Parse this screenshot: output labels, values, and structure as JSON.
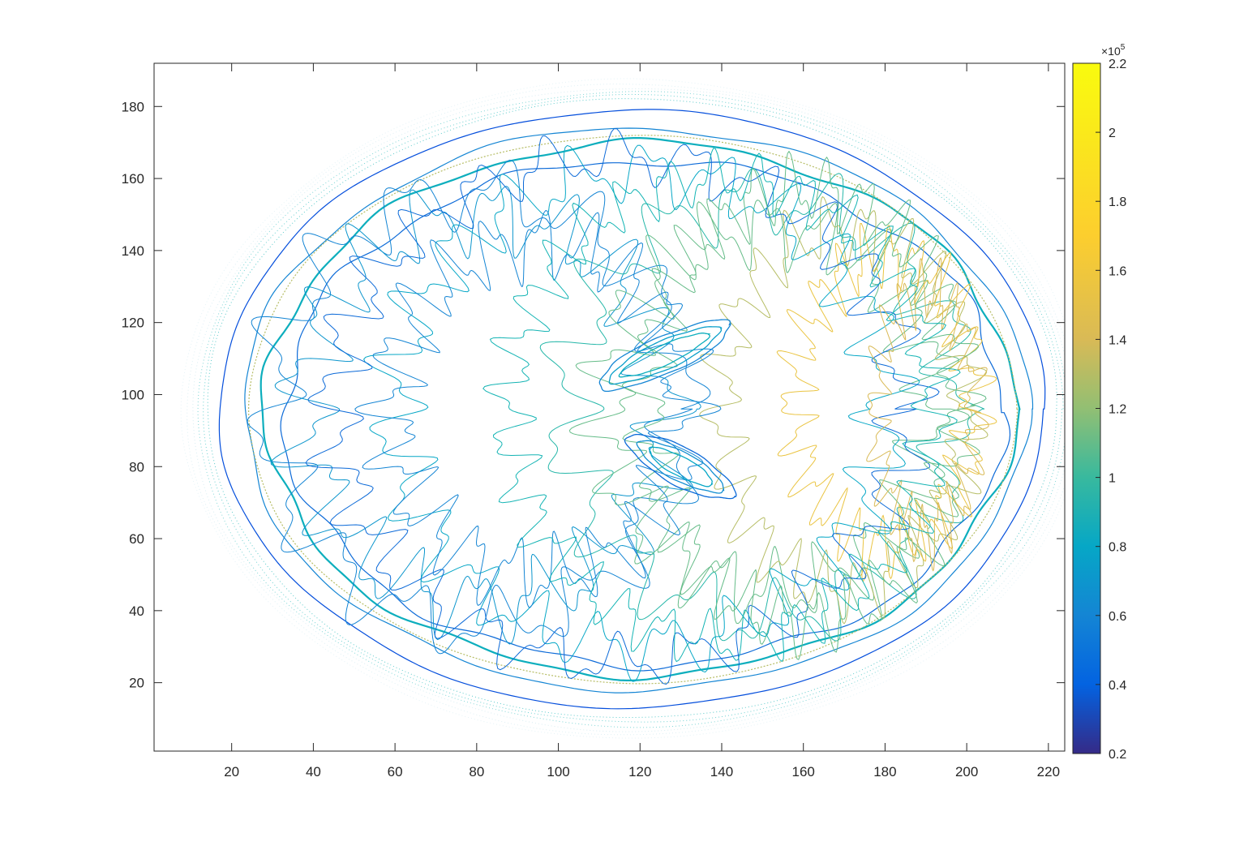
{
  "chart_data": {
    "type": "contour",
    "title": "",
    "xlabel": "",
    "ylabel": "",
    "xlim": [
      1,
      224
    ],
    "ylim": [
      1,
      192
    ],
    "x_ticks": [
      20,
      40,
      60,
      80,
      100,
      120,
      140,
      160,
      180,
      200,
      220
    ],
    "y_ticks": [
      20,
      40,
      60,
      80,
      100,
      120,
      140,
      160,
      180
    ],
    "grid": false,
    "colorbar": {
      "colormap": "parula",
      "limits": [
        0.2,
        2.2
      ],
      "ticks": [
        0.2,
        0.4,
        0.6,
        0.8,
        1,
        1.2,
        1.4,
        1.6,
        1.8,
        2,
        2.2
      ],
      "tick_labels": [
        "0.2",
        "0.4",
        "0.6",
        "0.8",
        "1",
        "1.2",
        "1.4",
        "1.6",
        "1.8",
        "2",
        "2.2"
      ],
      "exponent_label": "×10",
      "exponent_power": "5"
    },
    "contours": {
      "description_values": "closed contour curves of an axial brain slice",
      "outer_shells": [
        {
          "cx": 118,
          "cy": 96,
          "rx": 101,
          "ry": 83,
          "level": 0.4
        },
        {
          "cx": 119,
          "cy": 96,
          "rx": 96,
          "ry": 78,
          "level": 0.6
        },
        {
          "cx": 120,
          "cy": 96,
          "rx": 92,
          "ry": 74,
          "level": 0.9
        },
        {
          "cx": 121,
          "cy": 95,
          "rx": 88,
          "ry": 70,
          "level": 0.5
        }
      ],
      "ventricles": [
        {
          "cx": 126,
          "cy": 111,
          "rx": 18,
          "ry": 5,
          "angle_deg": 28,
          "level": 0.6
        },
        {
          "cx": 130,
          "cy": 80,
          "rx": 15,
          "ry": 5,
          "angle_deg": -32,
          "level": 0.5
        }
      ]
    }
  }
}
